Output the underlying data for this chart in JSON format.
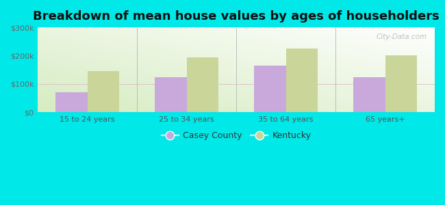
{
  "title": "Breakdown of mean house values by ages of householders",
  "categories": [
    "15 to 24 years",
    "25 to 34 years",
    "35 to 64 years",
    "65 years+"
  ],
  "casey_county": [
    70000,
    125000,
    165000,
    125000
  ],
  "kentucky": [
    145000,
    195000,
    225000,
    200000
  ],
  "casey_color": "#c9a8dc",
  "kentucky_color": "#cad59a",
  "bar_width": 0.32,
  "ylim": [
    0,
    300000
  ],
  "yticks": [
    0,
    100000,
    200000,
    300000
  ],
  "ytick_labels": [
    "$0",
    "$100k",
    "$200k",
    "$300k"
  ],
  "background_color": "#00e8e8",
  "title_fontsize": 13,
  "legend_labels": [
    "Casey County",
    "Kentucky"
  ],
  "watermark": "City-Data.com"
}
